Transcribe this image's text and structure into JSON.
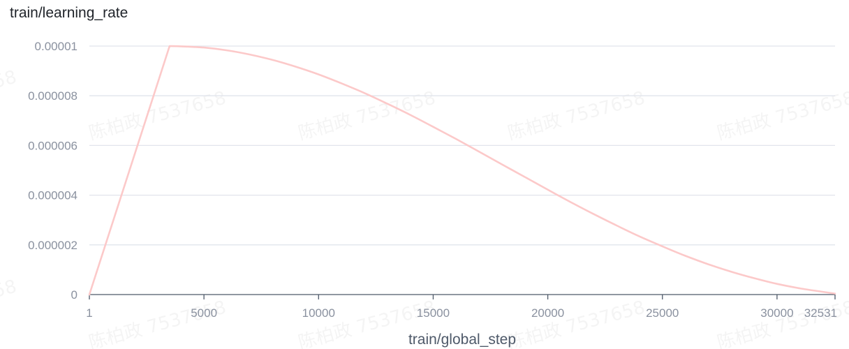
{
  "watermark": "陈柏政 7537658",
  "chart_data": {
    "type": "line",
    "title": "train/learning_rate",
    "xlabel": "train/global_step",
    "ylabel": "",
    "xlim": [
      1,
      32531
    ],
    "ylim": [
      0,
      1e-05
    ],
    "x_ticks": [
      1,
      5000,
      10000,
      15000,
      20000,
      25000,
      30000,
      32531
    ],
    "x_tick_labels": [
      "1",
      "5000",
      "10000",
      "15000",
      "20000",
      "25000",
      "30000",
      "32531"
    ],
    "y_ticks": [
      0,
      2e-06,
      4e-06,
      6e-06,
      8e-06,
      1e-05
    ],
    "y_tick_labels": [
      "0",
      "0.000002",
      "0.000004",
      "0.000006",
      "0.000008",
      "0.00001"
    ],
    "grid": true,
    "line_color": "#fcc9c9",
    "series": [
      {
        "x": [
          1,
          3500,
          4000,
          5000,
          6000,
          7000,
          8000,
          9000,
          10000,
          11000,
          12000,
          13000,
          14000,
          15000,
          16000,
          17000,
          18000,
          19000,
          20000,
          21000,
          22000,
          23000,
          24000,
          25000,
          26000,
          27000,
          28000,
          29000,
          30000,
          31000,
          32000,
          32531
        ],
        "y": [
          0,
          1e-05,
          9.99e-06,
          9.94e-06,
          9.83e-06,
          9.66e-06,
          9.44e-06,
          9.17e-06,
          8.86e-06,
          8.5e-06,
          8.11e-06,
          7.68e-06,
          7.23e-06,
          6.75e-06,
          6.26e-06,
          5.75e-06,
          5.24e-06,
          4.73e-06,
          4.22e-06,
          3.72e-06,
          3.24e-06,
          2.78e-06,
          2.34e-06,
          1.94e-06,
          1.56e-06,
          1.22e-06,
          9.2e-07,
          6.6e-07,
          4.3e-07,
          2.5e-07,
          1.1e-07,
          4e-08
        ]
      }
    ]
  }
}
